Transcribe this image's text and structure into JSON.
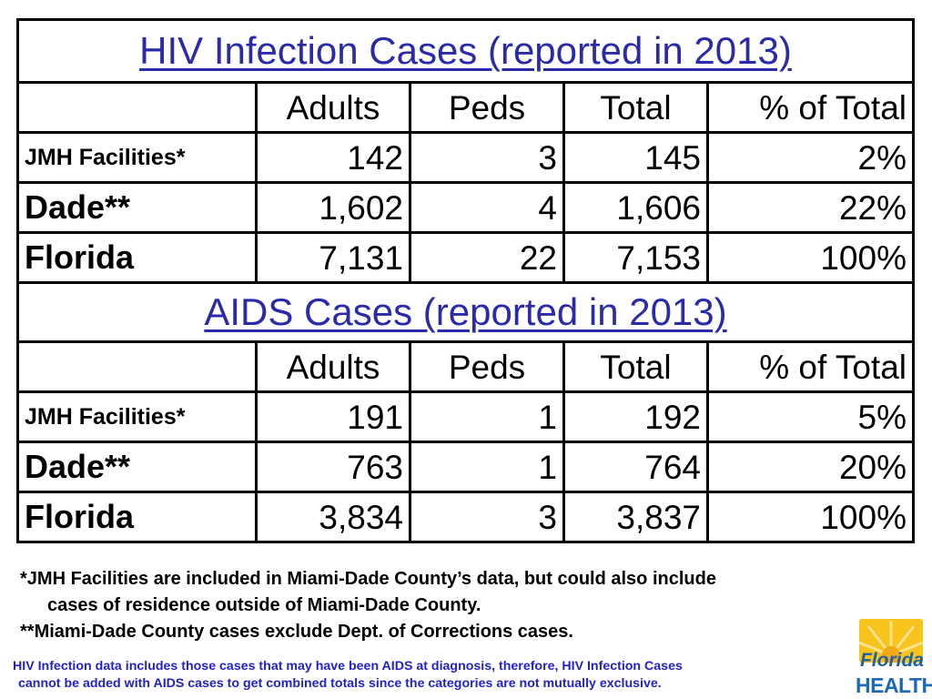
{
  "hiv_table": {
    "title": "HIV Infection Cases  (reported in 2013)",
    "headers": [
      "",
      "Adults",
      "Peds",
      "Total",
      "% of Total"
    ],
    "rows": [
      {
        "label": "JMH Facilities*",
        "adults": "142",
        "peds": "3",
        "total": "145",
        "pct": "2%"
      },
      {
        "label": "Dade**",
        "adults": "1,602",
        "peds": "4",
        "total": "1,606",
        "pct": "22%"
      },
      {
        "label": "Florida",
        "adults": "7,131",
        "peds": "22",
        "total": "7,153",
        "pct": "100%"
      }
    ]
  },
  "aids_table": {
    "title": "AIDS Cases  (reported in 2013)",
    "headers": [
      "",
      "Adults",
      "Peds",
      "Total",
      "% of Total"
    ],
    "rows": [
      {
        "label": "JMH Facilities*",
        "adults": "191",
        "peds": "1",
        "total": "192",
        "pct": "5%"
      },
      {
        "label": "Dade**",
        "adults": "763",
        "peds": "1",
        "total": "764",
        "pct": "20%"
      },
      {
        "label": "Florida",
        "adults": "3,834",
        "peds": "3",
        "total": "3,837",
        "pct": "100%"
      }
    ]
  },
  "footnotes": {
    "line1": "*JMH Facilities are included in Miami-Dade County’s data, but could also include",
    "line1_cont": "cases of residence outside of Miami-Dade County.",
    "line2": "**Miami-Dade County cases exclude Dept. of Corrections cases."
  },
  "bottom_note": {
    "line1": "HIV Infection data includes those cases that may have been AIDS at diagnosis, therefore,  HIV Infection Cases",
    "line2": "cannot be added  with AIDS cases to get combined totals since the categories are not mutually exclusive."
  },
  "logo": {
    "top_word": "Florida",
    "bottom_word": "HEALTH"
  },
  "colors": {
    "title_blue": "#2a2aaa",
    "note_blue": "#2222cc",
    "logo_yellow": "#f7c31c",
    "logo_blue": "#1c6ab3"
  }
}
